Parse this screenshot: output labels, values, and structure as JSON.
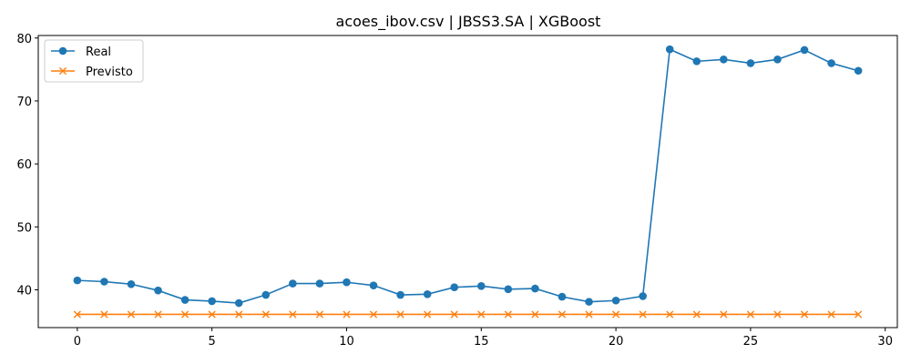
{
  "chart_data": {
    "type": "line",
    "title": "acoes_ibov.csv | JBSS3.SA | XGBoost",
    "xlabel": "",
    "ylabel": "",
    "xlim": [
      -1.45,
      30.45
    ],
    "ylim": [
      34.0,
      80.4
    ],
    "x_ticks": [
      0,
      5,
      10,
      15,
      20,
      25,
      30
    ],
    "y_ticks": [
      40,
      50,
      60,
      70,
      80
    ],
    "grid": false,
    "legend_position": "top-left",
    "x": [
      0,
      1,
      2,
      3,
      4,
      5,
      6,
      7,
      8,
      9,
      10,
      11,
      12,
      13,
      14,
      15,
      16,
      17,
      18,
      19,
      20,
      21,
      22,
      23,
      24,
      25,
      26,
      27,
      28,
      29
    ],
    "series": [
      {
        "name": "Real",
        "color": "#1f77b4",
        "marker": "circle",
        "values": [
          41.5,
          41.3,
          40.9,
          39.9,
          38.4,
          38.2,
          37.9,
          39.2,
          41.0,
          41.0,
          41.2,
          40.7,
          39.2,
          39.3,
          40.4,
          40.6,
          40.1,
          40.2,
          38.9,
          38.1,
          38.3,
          39.0,
          78.2,
          76.3,
          76.6,
          76.0,
          76.6,
          78.1,
          76.0,
          74.8
        ]
      },
      {
        "name": "Previsto",
        "color": "#ff7f0e",
        "marker": "x",
        "values": [
          36.1,
          36.1,
          36.1,
          36.1,
          36.1,
          36.1,
          36.1,
          36.1,
          36.1,
          36.1,
          36.1,
          36.1,
          36.1,
          36.1,
          36.1,
          36.1,
          36.1,
          36.1,
          36.1,
          36.1,
          36.1,
          36.1,
          36.1,
          36.1,
          36.1,
          36.1,
          36.1,
          36.1,
          36.1,
          36.1
        ]
      }
    ]
  }
}
